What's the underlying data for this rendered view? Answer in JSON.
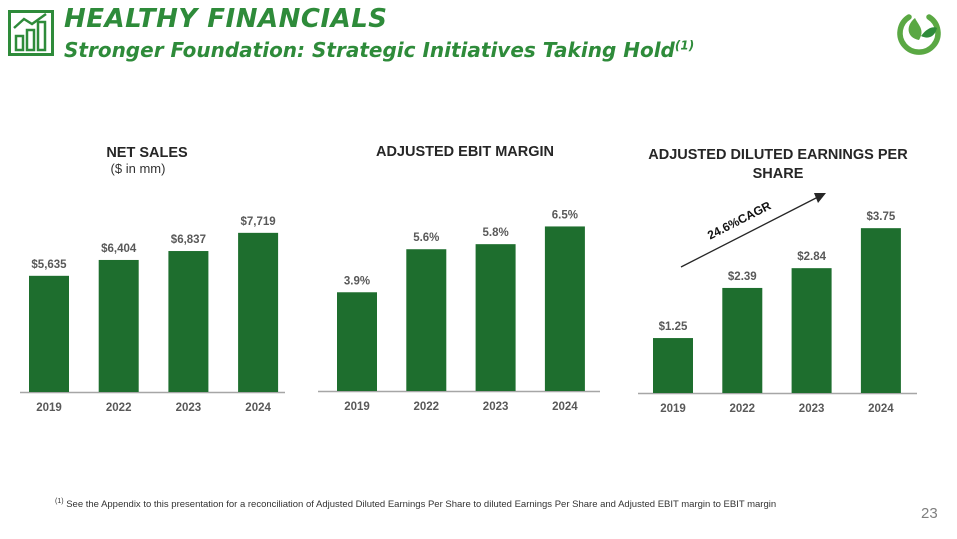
{
  "header": {
    "title": "HEALTHY FINANCIALS",
    "subtitle": "Stronger Foundation: Strategic Initiatives Taking Hold",
    "subtitle_footnote_mark": "(1)",
    "icon": "bar-chart-icon",
    "logo": "leaf-logo-icon"
  },
  "colors": {
    "bar": "#1e6e2e",
    "heading": "#2e8b3a",
    "axis": "#a6a6a6",
    "label": "#595959"
  },
  "chart_data": [
    {
      "type": "bar",
      "title": "NET SALES",
      "subtitle": "($ in mm)",
      "categories": [
        "2019",
        "2022",
        "2023",
        "2024"
      ],
      "values": [
        5635,
        6404,
        6837,
        7719
      ],
      "value_labels": [
        "$5,635",
        "$6,404",
        "$6,837",
        "$7,719"
      ],
      "ylim": [
        0,
        9700
      ],
      "grid": false
    },
    {
      "type": "bar",
      "title": "ADJUSTED EBIT MARGIN",
      "categories": [
        "2019",
        "2022",
        "2023",
        "2024"
      ],
      "values": [
        3.9,
        5.6,
        5.8,
        6.5
      ],
      "value_labels": [
        "3.9%",
        "5.6%",
        "5.8%",
        "6.5%"
      ],
      "ylim": [
        0,
        7.9
      ],
      "grid": false
    },
    {
      "type": "bar",
      "title": "ADJUSTED DILUTED EARNINGS PER SHARE",
      "categories": [
        "2019",
        "2022",
        "2023",
        "2024"
      ],
      "values": [
        1.25,
        2.39,
        2.84,
        3.75
      ],
      "value_labels": [
        "$1.25",
        "$2.39",
        "$2.84",
        "$3.75"
      ],
      "ylim": [
        0,
        4.55
      ],
      "grid": false,
      "annotation": "24.6%CAGR"
    }
  ],
  "footnote": {
    "mark": "(1)",
    "text": "See the Appendix to this presentation for a reconciliation of Adjusted Diluted Earnings Per Share to diluted Earnings Per Share and Adjusted EBIT margin to EBIT margin"
  },
  "page_number": "23"
}
